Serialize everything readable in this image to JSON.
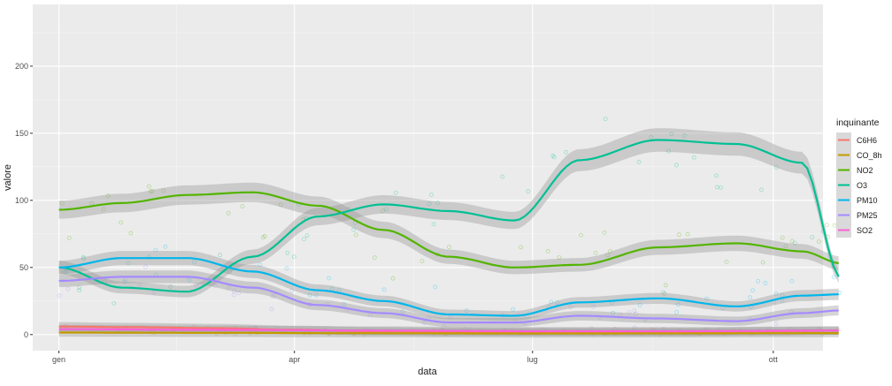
{
  "chart_data": {
    "type": "scatter",
    "subtype": "scatter with loess smooth lines and confidence bands",
    "title": "",
    "xlabel": "data",
    "ylabel": "valore",
    "x_ticks": [
      "gen",
      "apr",
      "lug",
      "ott"
    ],
    "x_tick_positions": [
      1,
      91,
      182,
      274
    ],
    "x_minor_positions": [
      46,
      136.5,
      228
    ],
    "xlim": [
      -9,
      293
    ],
    "x_unit": "day of year",
    "y_ticks": [
      0,
      50,
      100,
      150,
      200
    ],
    "ylim": [
      -12,
      246
    ],
    "grid": true,
    "background": "#ebebeb",
    "legend": {
      "title": "inquinante",
      "position": "right",
      "entries": [
        "C6H6",
        "CO_8h",
        "NO2",
        "O3",
        "PM10",
        "PM25",
        "SO2"
      ]
    },
    "series": [
      {
        "name": "C6H6",
        "color": "#f8766d",
        "smooth": {
          "x": [
            1,
            30,
            60,
            91,
            120,
            150,
            182,
            210,
            240,
            274,
            300
          ],
          "y": [
            6,
            5.5,
            4.8,
            3.5,
            2.5,
            2.0,
            2.0,
            2.0,
            2.0,
            2.5,
            3.0
          ]
        },
        "points": {
          "center": [
            [
              1,
              6
            ],
            [
              40,
              5
            ],
            [
              80,
              4
            ],
            [
              120,
              2.5
            ],
            [
              160,
              2
            ],
            [
              200,
              2
            ],
            [
              240,
              2
            ],
            [
              280,
              3
            ]
          ],
          "spread": 2
        }
      },
      {
        "name": "CO_8h",
        "color": "#c49a00",
        "smooth": {
          "x": [
            1,
            60,
            120,
            180,
            240,
            300
          ],
          "y": [
            1.5,
            1.3,
            1.0,
            0.8,
            0.9,
            1.1
          ]
        },
        "points": {
          "center": [
            [
              1,
              1.5
            ],
            [
              60,
              1.3
            ],
            [
              120,
              1
            ],
            [
              180,
              0.8
            ],
            [
              240,
              0.9
            ],
            [
              300,
              1.1
            ]
          ],
          "spread": 1
        }
      },
      {
        "name": "NO2",
        "color": "#53b400",
        "smooth": {
          "x": [
            1,
            25,
            50,
            75,
            100,
            125,
            150,
            175,
            200,
            230,
            260,
            285,
            300
          ],
          "y": [
            93,
            98,
            104,
            106,
            96,
            78,
            58,
            50,
            52,
            65,
            68,
            62,
            53
          ]
        },
        "points": {
          "center": [
            [
              1,
              95
            ],
            [
              40,
              102
            ],
            [
              80,
              100
            ],
            [
              120,
              75
            ],
            [
              160,
              55
            ],
            [
              200,
              60
            ],
            [
              240,
              55
            ],
            [
              280,
              70
            ],
            [
              300,
              60
            ]
          ],
          "spread": 35
        }
      },
      {
        "name": "O3",
        "color": "#00c094",
        "smooth": {
          "x": [
            1,
            25,
            50,
            75,
            100,
            125,
            150,
            175,
            200,
            230,
            260,
            285,
            300
          ],
          "y": [
            50,
            35,
            32,
            58,
            88,
            97,
            92,
            85,
            130,
            145,
            142,
            128,
            42
          ]
        },
        "points": {
          "center": [
            [
              1,
              45
            ],
            [
              40,
              35
            ],
            [
              80,
              70
            ],
            [
              120,
              95
            ],
            [
              160,
              90
            ],
            [
              200,
              140
            ],
            [
              240,
              140
            ],
            [
              280,
              95
            ],
            [
              300,
              50
            ]
          ],
          "spread": 30
        }
      },
      {
        "name": "PM10",
        "color": "#00b6eb",
        "smooth": {
          "x": [
            1,
            25,
            50,
            75,
            100,
            125,
            150,
            175,
            200,
            230,
            260,
            285,
            300
          ],
          "y": [
            50,
            57,
            57,
            47,
            33,
            25,
            15,
            14,
            24,
            27,
            21,
            29,
            30
          ]
        },
        "points": {
          "center": [
            [
              1,
              50
            ],
            [
              40,
              55
            ],
            [
              80,
              40
            ],
            [
              120,
              25
            ],
            [
              160,
              15
            ],
            [
              200,
              26
            ],
            [
              240,
              22
            ],
            [
              280,
              30
            ],
            [
              300,
              30
            ]
          ],
          "spread": 18
        }
      },
      {
        "name": "PM25",
        "color": "#a58aff",
        "smooth": {
          "x": [
            1,
            25,
            50,
            75,
            100,
            125,
            150,
            175,
            200,
            230,
            260,
            285,
            300
          ],
          "y": [
            40,
            43,
            43,
            35,
            22,
            16,
            9,
            9,
            14,
            12,
            10,
            16,
            18
          ]
        },
        "points": {
          "center": [
            [
              1,
              40
            ],
            [
              40,
              42
            ],
            [
              80,
              30
            ],
            [
              120,
              18
            ],
            [
              160,
              9
            ],
            [
              200,
              13
            ],
            [
              240,
              10
            ],
            [
              280,
              16
            ],
            [
              300,
              18
            ]
          ],
          "spread": 12
        }
      },
      {
        "name": "SO2",
        "color": "#fb61d7",
        "smooth": {
          "x": [
            1,
            60,
            120,
            180,
            240,
            300
          ],
          "y": [
            4,
            3.5,
            3,
            2.5,
            2.5,
            3
          ]
        },
        "points": {
          "center": [
            [
              1,
              4
            ],
            [
              60,
              3.5
            ],
            [
              120,
              3
            ],
            [
              180,
              2.5
            ],
            [
              240,
              2.5
            ],
            [
              300,
              3
            ]
          ],
          "spread": 2
        }
      }
    ]
  }
}
